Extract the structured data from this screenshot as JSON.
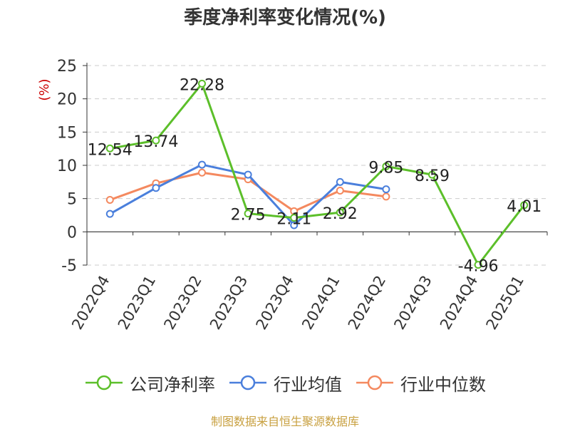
{
  "chart_data": {
    "type": "line",
    "title": "季度净利率变化情况(%)",
    "ylabel": "(%)",
    "xlabel": "",
    "ylim": [
      -5,
      25
    ],
    "yticks": [
      -5,
      0,
      5,
      10,
      15,
      20,
      25
    ],
    "grid": true,
    "legend_position": "bottom",
    "categories": [
      "2022Q4",
      "2023Q1",
      "2023Q2",
      "2023Q3",
      "2023Q4",
      "2024Q1",
      "2024Q2",
      "2024Q3",
      "2024Q4",
      "2025Q1"
    ],
    "series": [
      {
        "name": "公司净利率",
        "color": "#5cbf2a",
        "values": [
          12.54,
          13.74,
          22.28,
          2.75,
          2.11,
          2.92,
          9.85,
          8.59,
          -4.96,
          4.01
        ],
        "labels": [
          "12.54",
          "13.74",
          "22.28",
          "2.75",
          "2.11",
          "2.92",
          "9.85",
          "8.59",
          "-4.96",
          "4.01"
        ]
      },
      {
        "name": "行业均值",
        "color": "#4a7fdc",
        "values": [
          2.7,
          6.6,
          10.1,
          8.6,
          1.0,
          7.5,
          6.4,
          null,
          null,
          null
        ]
      },
      {
        "name": "行业中位数",
        "color": "#f4895f",
        "values": [
          4.8,
          7.3,
          8.9,
          7.9,
          3.1,
          6.2,
          5.3,
          null,
          null,
          null
        ]
      }
    ]
  },
  "footer": {
    "source": "制图数据来自恒生聚源数据库"
  }
}
